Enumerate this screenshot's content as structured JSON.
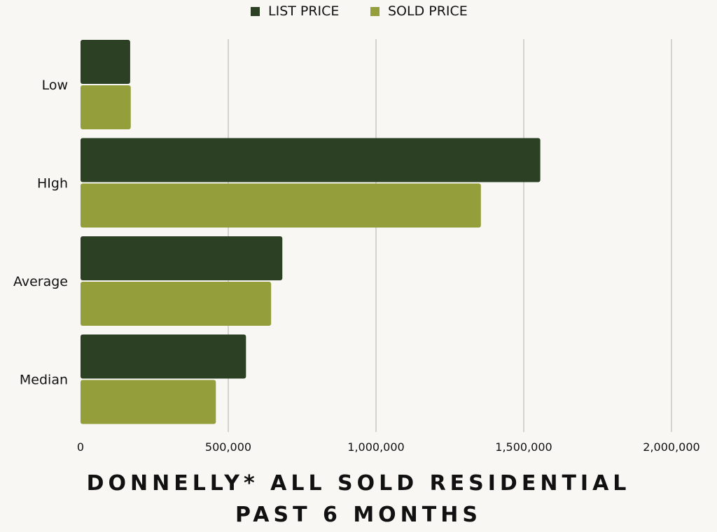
{
  "chart_data": {
    "type": "bar",
    "orientation": "horizontal",
    "title": [
      "DONNELLY* ALL SOLD RESIDENTIAL",
      "PAST 6 MONTHS"
    ],
    "categories": [
      "Low",
      "HIgh",
      "Average",
      "Median"
    ],
    "series": [
      {
        "name": "LIST PRICE",
        "color": "#2c4024",
        "values": [
          168000,
          1556000,
          683000,
          560000
        ]
      },
      {
        "name": "SOLD PRICE",
        "color": "#949e3b",
        "values": [
          170000,
          1355000,
          645000,
          458000
        ]
      }
    ],
    "xlim": [
      0,
      2000000
    ],
    "xticks": [
      {
        "value": 0,
        "label": "0"
      },
      {
        "value": 500000,
        "label": "500,000"
      },
      {
        "value": 1000000,
        "label": "1,000,000"
      },
      {
        "value": 1500000,
        "label": "1,500,000"
      },
      {
        "value": 2000000,
        "label": "2,000,000"
      }
    ],
    "grid": true,
    "legend": "top-center"
  }
}
